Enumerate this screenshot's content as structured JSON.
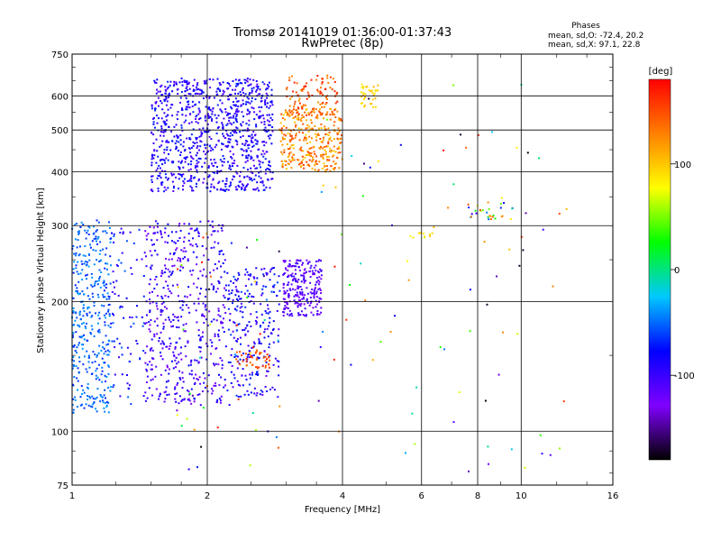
{
  "header": {
    "title_line1": "Tromsø 20141019 01:36:00-01:37:43",
    "title_line2": "RwPretec (8p)"
  },
  "phase_box": {
    "heading": "Phases",
    "line1": "mean, sd,O: -72.4, 20.2",
    "line2": "mean, sd,X:  97.1, 22.8"
  },
  "chart_data": {
    "type": "scatter",
    "title": "Tromsø 20141019 01:36:00-01:37:43",
    "subtitle": "RwPretec (8p)",
    "xlabel": "Frequency [MHz]",
    "ylabel": "Stationary phase Virtual Height [km]",
    "xscale": "log",
    "yscale": "log",
    "xlim": [
      1,
      16
    ],
    "ylim": [
      75,
      750
    ],
    "xticks": [
      1,
      2,
      4,
      6,
      8,
      10,
      16
    ],
    "yticks": [
      75,
      100,
      200,
      300,
      400,
      500,
      600,
      750
    ],
    "grid": true,
    "colorbar": {
      "label": "[deg]",
      "range": [
        -180,
        180
      ],
      "ticks": [
        -100,
        0,
        100
      ],
      "colors": [
        "#000000",
        "#8000ff",
        "#0000ff",
        "#00c8ff",
        "#00ff00",
        "#ffff00",
        "#ff8000",
        "#ff0000"
      ]
    },
    "clusters": [
      {
        "f": [
          1.5,
          2.8
        ],
        "h": [
          360,
          660
        ],
        "phase": [
          -115,
          -65
        ],
        "n": 950
      },
      {
        "f": [
          2.9,
          4.0
        ],
        "h": [
          400,
          560
        ],
        "phase": [
          95,
          155
        ],
        "n": 320
      },
      {
        "f": [
          3.0,
          3.9
        ],
        "h": [
          540,
          670
        ],
        "phase": [
          120,
          170
        ],
        "n": 110
      },
      {
        "f": [
          4.4,
          4.8
        ],
        "h": [
          560,
          640
        ],
        "phase": [
          80,
          110
        ],
        "n": 35
      },
      {
        "f": [
          1.0,
          1.22
        ],
        "h": [
          110,
          310
        ],
        "phase": [
          -70,
          -35
        ],
        "n": 380
      },
      {
        "f": [
          1.22,
          1.45
        ],
        "h": [
          115,
          300
        ],
        "phase": [
          -110,
          -50
        ],
        "n": 80
      },
      {
        "f": [
          1.45,
          2.2
        ],
        "h": [
          115,
          310
        ],
        "phase": [
          -130,
          -75
        ],
        "n": 500
      },
      {
        "f": [
          2.2,
          2.9
        ],
        "h": [
          120,
          240
        ],
        "phase": [
          -115,
          -60
        ],
        "n": 260
      },
      {
        "f": [
          2.3,
          2.75
        ],
        "h": [
          140,
          155
        ],
        "phase": [
          130,
          165
        ],
        "n": 45
      },
      {
        "f": [
          2.95,
          3.6
        ],
        "h": [
          185,
          250
        ],
        "phase": [
          -130,
          -95
        ],
        "n": 240
      },
      {
        "f": [
          1.7,
          2.9
        ],
        "h": [
          78,
          300
        ],
        "phase": [
          -180,
          180
        ],
        "n": 55
      },
      {
        "f": [
          3.5,
          13.0
        ],
        "h": [
          80,
          650
        ],
        "phase": [
          -180,
          180
        ],
        "n": 80
      },
      {
        "f": [
          7.6,
          9.6
        ],
        "h": [
          310,
          340
        ],
        "phase": [
          -100,
          160
        ],
        "n": 30
      },
      {
        "f": [
          5.5,
          6.5
        ],
        "h": [
          280,
          290
        ],
        "phase": [
          50,
          110
        ],
        "n": 10
      }
    ]
  }
}
